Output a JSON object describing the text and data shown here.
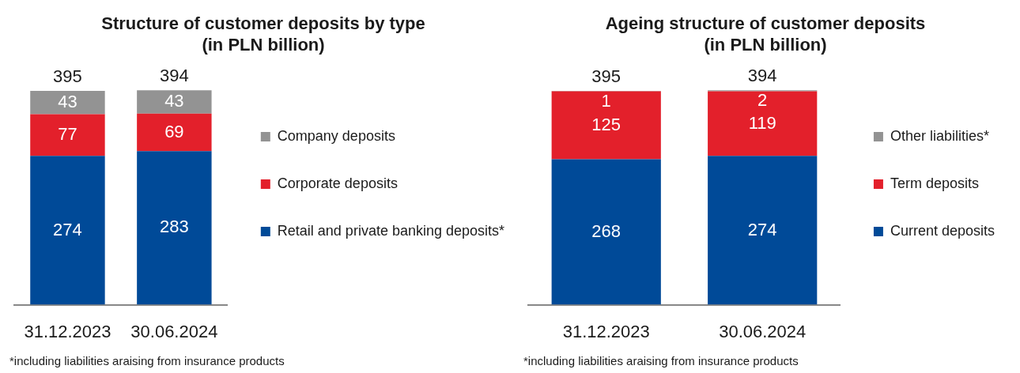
{
  "chart_data": [
    {
      "type": "bar",
      "title": "Structure of customer deposits by type",
      "subtitle": "(in PLN billion)",
      "categories": [
        "31.12.2023",
        "30.06.2024"
      ],
      "stacked": true,
      "data_labels": true,
      "legend": "right",
      "totals": [
        "395",
        "394"
      ],
      "annotations": [
        "*including liabilities araising from insurance products"
      ],
      "series": [
        {
          "name": "Retail and private banking deposits*",
          "color": "#004a98",
          "values": [
            274,
            283
          ]
        },
        {
          "name": "Corporate deposits",
          "color": "#e3202b",
          "values": [
            77,
            69
          ]
        },
        {
          "name": "Company deposits",
          "color": "#939393",
          "values": [
            43,
            43
          ]
        }
      ]
    },
    {
      "type": "bar",
      "title": "Ageing structure of customer deposits",
      "subtitle": "(in PLN billion)",
      "categories": [
        "31.12.2023",
        "30.06.2024"
      ],
      "stacked": true,
      "data_labels": true,
      "legend": "right",
      "totals": [
        "395",
        "394"
      ],
      "annotations": [
        "*including liabilities araising from insurance products"
      ],
      "series": [
        {
          "name": "Current deposits",
          "color": "#004a98",
          "values": [
            268,
            274
          ]
        },
        {
          "name": "Term deposits",
          "color": "#e3202b",
          "values": [
            125,
            119
          ]
        },
        {
          "name": "Other liabilities*",
          "color": "#939393",
          "values": [
            1,
            2
          ]
        }
      ]
    }
  ]
}
